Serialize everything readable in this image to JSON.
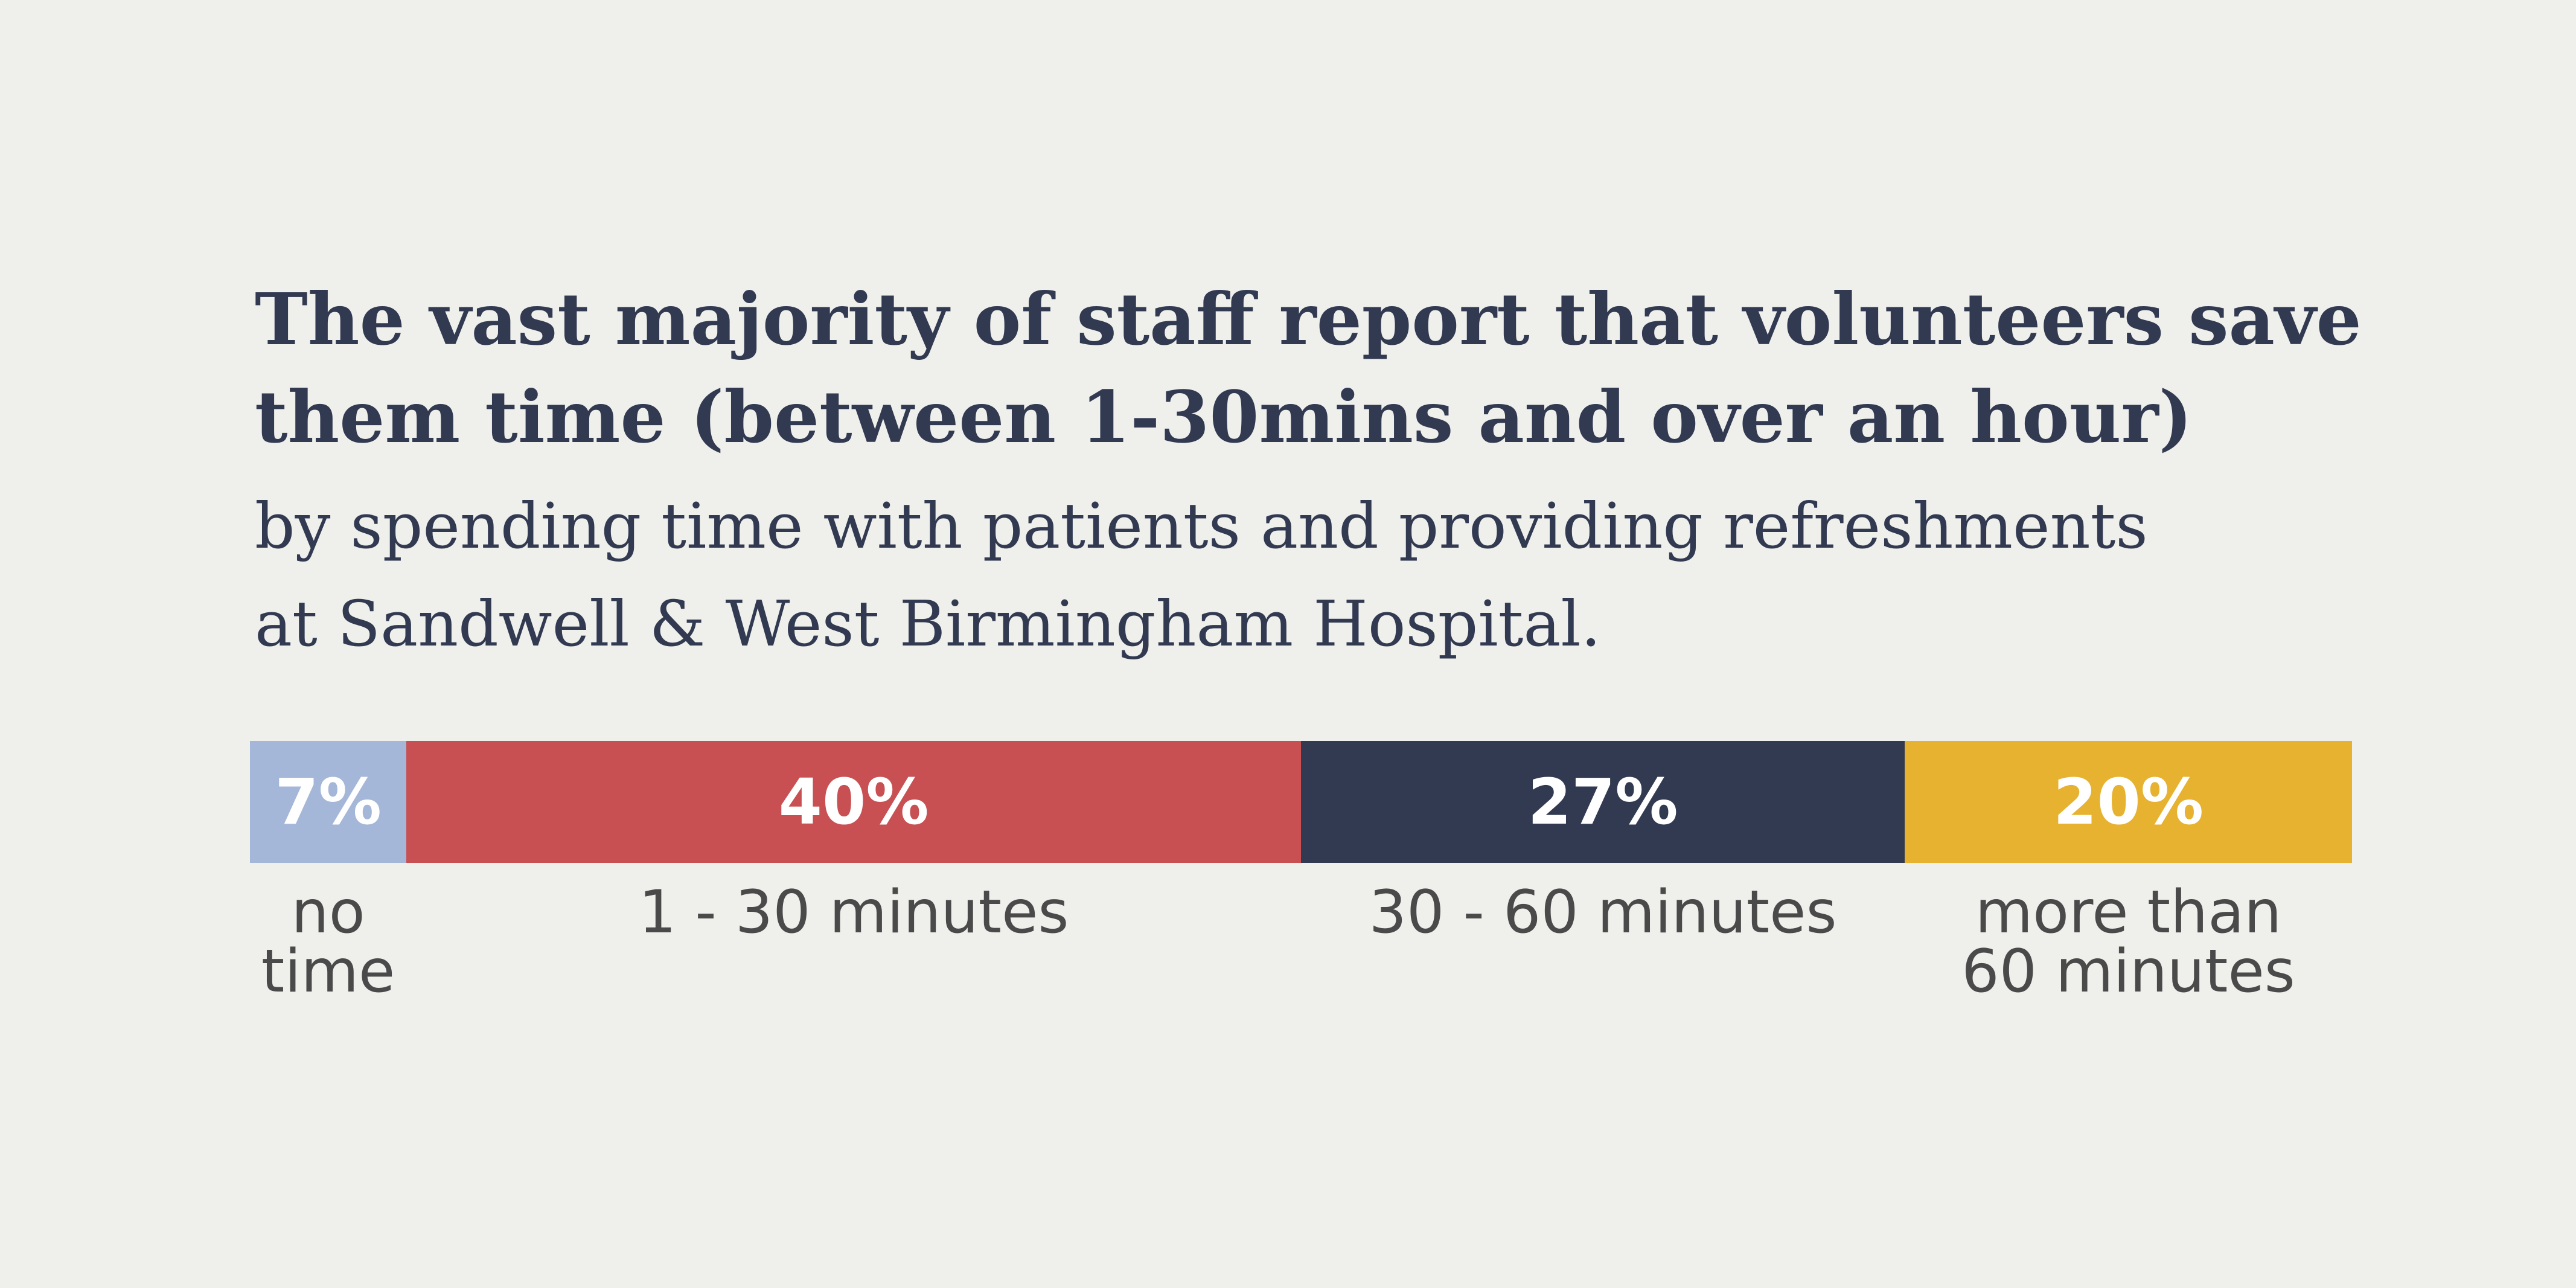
{
  "chart_data": {
    "type": "bar",
    "orientation": "horizontal",
    "stacked": true,
    "title": "The vast majority of staff report that volunteers save\nthem time (between 1-30mins and over an hour)",
    "subtitle": "by spending time with patients and providing refreshments\nat Sandwell & West Birmingham Hospital.",
    "categories": [
      "no\ntime",
      "1 - 30 minutes",
      "30 - 60 minutes",
      "more than\n60 minutes"
    ],
    "values": [
      7,
      40,
      27,
      20
    ],
    "data_labels": [
      "7%",
      "40%",
      "27%",
      "20%"
    ],
    "unit": "%",
    "colors": [
      "#a4b7d8",
      "#c85053",
      "#323a52",
      "#e6b22f"
    ],
    "legend": "none",
    "grid": false
  }
}
